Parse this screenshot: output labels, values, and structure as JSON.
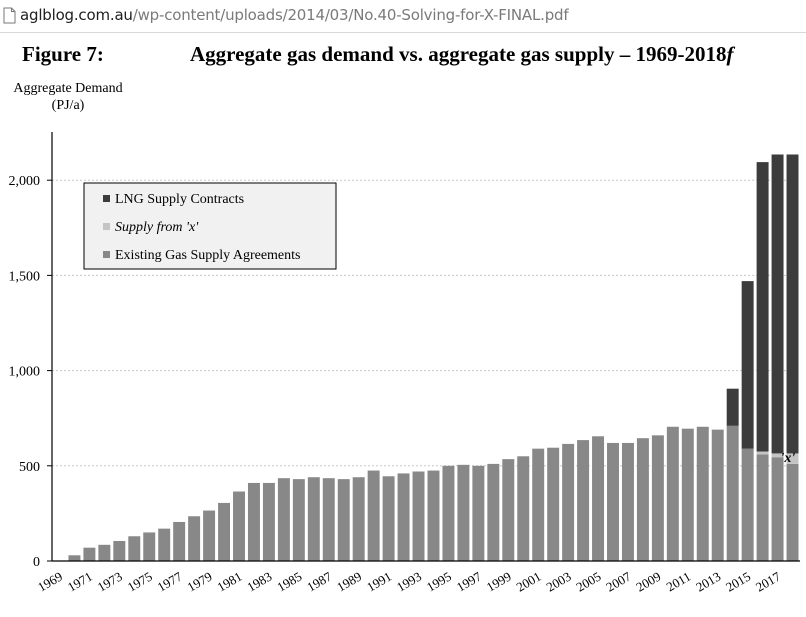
{
  "browser": {
    "url_host": "aglblog.com.au",
    "url_path": "/wp-content/uploads/2014/03/No.40-Solving-for-X-FINAL.pdf",
    "icon": "document-icon"
  },
  "figure": {
    "label": "Figure 7:",
    "title_main": "Aggregate gas demand vs. aggregate gas supply – 1969-2018",
    "title_suffix": "f"
  },
  "chart_data": {
    "type": "bar",
    "stacked": true,
    "ylabel_line1": "Aggregate Demand",
    "ylabel_line2": "(PJ/a)",
    "xlabel": "",
    "ylim": [
      0,
      2250
    ],
    "yticks": [
      0,
      500,
      1000,
      1500,
      2000
    ],
    "ytick_labels": [
      "0",
      "500",
      "1,000",
      "1,500",
      "2,000"
    ],
    "grid": true,
    "legend_position": "top-left",
    "categories": [
      1969,
      1970,
      1971,
      1972,
      1973,
      1974,
      1975,
      1976,
      1977,
      1978,
      1979,
      1980,
      1981,
      1982,
      1983,
      1984,
      1985,
      1986,
      1987,
      1988,
      1989,
      1990,
      1991,
      1992,
      1993,
      1994,
      1995,
      1996,
      1997,
      1998,
      1999,
      2000,
      2001,
      2002,
      2003,
      2004,
      2005,
      2006,
      2007,
      2008,
      2009,
      2010,
      2011,
      2012,
      2013,
      2014,
      2015,
      2016,
      2017,
      2018
    ],
    "xtick_labels": [
      "1969",
      "1971",
      "1973",
      "1975",
      "1977",
      "1979",
      "1981",
      "1983",
      "1985",
      "1987",
      "1989",
      "1991",
      "1993",
      "1995",
      "1997",
      "1999",
      "2001",
      "2003",
      "2005",
      "2007",
      "2009",
      "2011",
      "2013",
      "2015",
      "2017"
    ],
    "series": [
      {
        "name": "Existing Gas Supply Agreements",
        "color": "#888888",
        "values": [
          0,
          30,
          70,
          85,
          105,
          130,
          150,
          170,
          205,
          235,
          265,
          305,
          365,
          410,
          410,
          435,
          430,
          440,
          435,
          430,
          440,
          475,
          445,
          460,
          470,
          475,
          500,
          505,
          500,
          510,
          535,
          550,
          590,
          595,
          615,
          635,
          655,
          620,
          620,
          645,
          660,
          705,
          695,
          705,
          690,
          710,
          590,
          560,
          545,
          510
        ]
      },
      {
        "name": "Supply from 'x'",
        "color": "#c4c4c4",
        "values": [
          0,
          0,
          0,
          0,
          0,
          0,
          0,
          0,
          0,
          0,
          0,
          0,
          0,
          0,
          0,
          0,
          0,
          0,
          0,
          0,
          0,
          0,
          0,
          0,
          0,
          0,
          0,
          0,
          0,
          0,
          0,
          0,
          0,
          0,
          0,
          0,
          0,
          0,
          0,
          0,
          0,
          0,
          0,
          0,
          0,
          0,
          0,
          15,
          20,
          55
        ]
      },
      {
        "name": "LNG Supply Contracts",
        "color": "#3c3c3c",
        "values": [
          0,
          0,
          0,
          0,
          0,
          0,
          0,
          0,
          0,
          0,
          0,
          0,
          0,
          0,
          0,
          0,
          0,
          0,
          0,
          0,
          0,
          0,
          0,
          0,
          0,
          0,
          0,
          0,
          0,
          0,
          0,
          0,
          0,
          0,
          0,
          0,
          0,
          0,
          0,
          0,
          0,
          0,
          0,
          0,
          0,
          195,
          880,
          1520,
          1570,
          1570
        ]
      }
    ],
    "legend": [
      {
        "label": "LNG Supply Contracts",
        "color": "#3c3c3c",
        "italic": false
      },
      {
        "label": "Supply from 'x'",
        "color": "#c4c4c4",
        "italic": true
      },
      {
        "label": "Existing Gas Supply Agreements",
        "color": "#888888",
        "italic": false
      }
    ],
    "annotation": {
      "text": "'x'",
      "year": 2018
    }
  }
}
